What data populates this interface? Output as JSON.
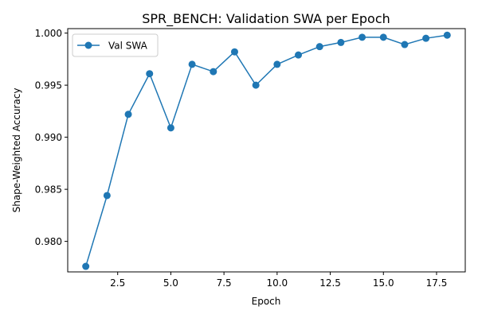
{
  "chart_data": {
    "type": "line",
    "title": "SPR_BENCH: Validation SWA per Epoch",
    "xlabel": "Epoch",
    "ylabel": "Shape-Weighted Accuracy",
    "xlim": [
      0.15,
      18.85
    ],
    "ylim": [
      0.97707,
      1.00043
    ],
    "xticks": [
      2.5,
      5.0,
      7.5,
      10.0,
      12.5,
      15.0,
      17.5
    ],
    "xtick_labels": [
      "2.5",
      "5.0",
      "7.5",
      "10.0",
      "12.5",
      "15.0",
      "17.5"
    ],
    "yticks": [
      0.98,
      0.985,
      0.99,
      0.995,
      1.0
    ],
    "ytick_labels": [
      "0.980",
      "0.985",
      "0.990",
      "0.995",
      "1.000"
    ],
    "grid": false,
    "legend": {
      "position": "top-left",
      "entries": [
        "Val SWA"
      ]
    },
    "series": [
      {
        "name": "Val SWA",
        "color": "#1f77b4",
        "marker": "circle",
        "x": [
          1,
          2,
          3,
          4,
          5,
          6,
          7,
          8,
          9,
          10,
          11,
          12,
          13,
          14,
          15,
          16,
          17,
          18
        ],
        "y": [
          0.9776,
          0.9844,
          0.9922,
          0.9961,
          0.9909,
          0.997,
          0.9963,
          0.9982,
          0.995,
          0.997,
          0.9979,
          0.9987,
          0.9991,
          0.9996,
          0.9996,
          0.9989,
          0.9995,
          0.9998
        ]
      }
    ]
  }
}
